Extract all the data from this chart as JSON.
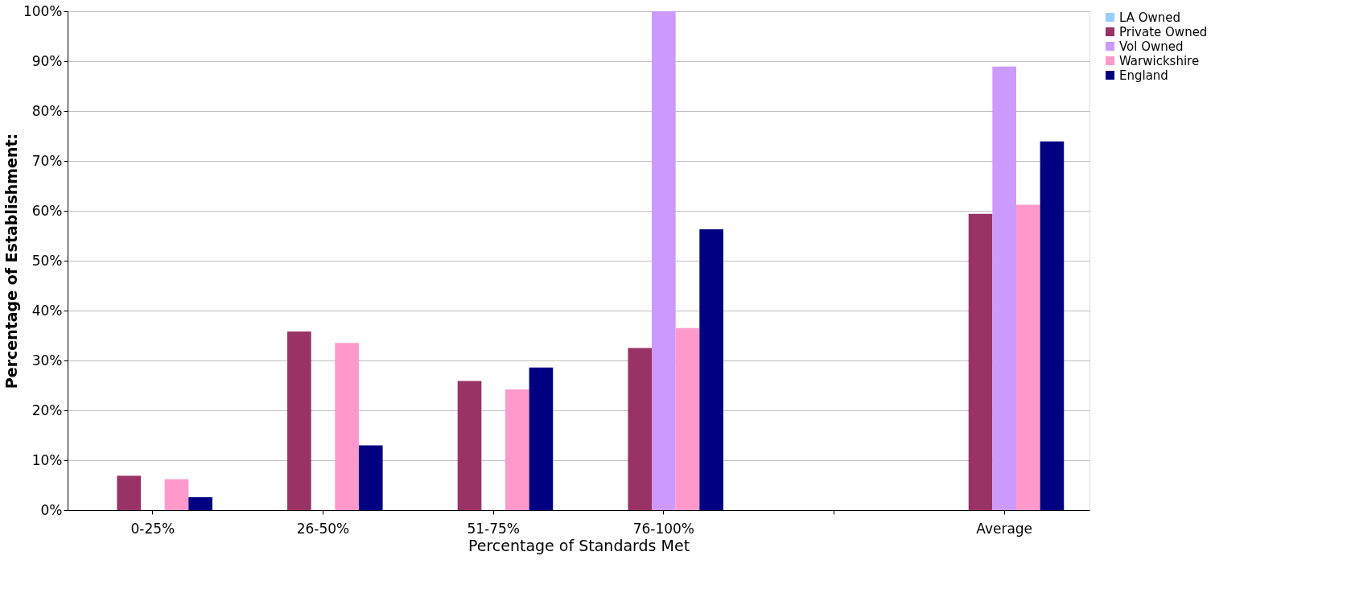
{
  "chart_data": {
    "type": "bar",
    "xlabel": "Percentage of Standards Met",
    "ylabel": "Percentage of Establishment:",
    "categories": [
      "0-25%",
      "26-50%",
      "51-75%",
      "76-100%",
      null,
      "Average"
    ],
    "series": [
      {
        "name": "LA Owned",
        "color": "#99ccff",
        "values": [
          null,
          null,
          null,
          null,
          null,
          null
        ]
      },
      {
        "name": "Private Owned",
        "color": "#993366",
        "values": [
          6.9,
          35.8,
          25.9,
          32.5,
          null,
          59.4
        ]
      },
      {
        "name": "Vol Owned",
        "color": "#cc99ff",
        "values": [
          null,
          null,
          null,
          100,
          null,
          88.9
        ]
      },
      {
        "name": "Warwickshire",
        "color": "#ff99cc",
        "values": [
          6.2,
          33.5,
          24.2,
          36.5,
          null,
          61.2
        ]
      },
      {
        "name": "England",
        "color": "#000080",
        "values": [
          2.6,
          13.0,
          28.6,
          56.3,
          null,
          73.9
        ]
      }
    ],
    "ylim": [
      0,
      100
    ],
    "yticks": [
      {
        "value": 0,
        "label": "0%"
      },
      {
        "value": 10,
        "label": "10%"
      },
      {
        "value": 20,
        "label": "20%"
      },
      {
        "value": 30,
        "label": "30%"
      },
      {
        "value": 40,
        "label": "40%"
      },
      {
        "value": 50,
        "label": "50%"
      },
      {
        "value": 60,
        "label": "60%"
      },
      {
        "value": 70,
        "label": "70%"
      },
      {
        "value": 80,
        "label": "80%"
      },
      {
        "value": 90,
        "label": "90%"
      },
      {
        "value": 100,
        "label": "100%"
      }
    ],
    "grid": "y",
    "legend": "right"
  }
}
